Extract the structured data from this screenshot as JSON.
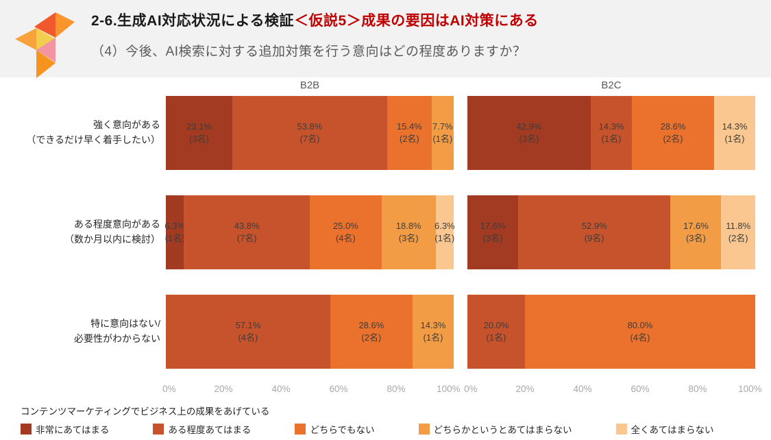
{
  "header": {
    "title_main": "2-6.生成AI対応状況による検証",
    "title_highlight": "＜仮説5＞成果の要因はAI対策にある",
    "subtitle": "（4）今後、AI検索に対する追加対策を行う意向はどの程度ありますか？"
  },
  "legend": {
    "caption": "コンテンツマーケティングでビジネス上の成果をあげている"
  },
  "chart_data": {
    "type": "bar",
    "orientation": "horizontal",
    "stacked": true,
    "title": "（4）今後、AI検索に対する追加対策を行う意向はどの程度ありますか？",
    "groups": [
      "B2B",
      "B2C"
    ],
    "categories": [
      {
        "lines": [
          "強く意向がある",
          "（できるだけ早く着手したい）"
        ]
      },
      {
        "lines": [
          "ある程度意向がある",
          "（数か月以内に検討）"
        ]
      },
      {
        "lines": [
          "特に意向はない/",
          "必要性がわからない"
        ]
      }
    ],
    "series_labels": [
      "非常にあてはまる",
      "ある程度あてはまる",
      "どちらでもない",
      "どちらかというとあてはまらない",
      "全くあてはまらない"
    ],
    "colors": [
      "#A23B21",
      "#C6532B",
      "#EB722C",
      "#F29D45",
      "#F9C78F"
    ],
    "axis": {
      "ticks": [
        "0%",
        "20%",
        "40%",
        "60%",
        "80%",
        "100%"
      ],
      "range": [
        0,
        100
      ],
      "gridlines": false
    },
    "legend_position": "bottom",
    "bars": {
      "B2B": [
        [
          {
            "series": 0,
            "pct": 23.1,
            "pct_label": "23.1%",
            "count": 3,
            "count_label": "(3名)"
          },
          {
            "series": 1,
            "pct": 53.8,
            "pct_label": "53.8%",
            "count": 7,
            "count_label": "(7名)"
          },
          {
            "series": 2,
            "pct": 15.4,
            "pct_label": "15.4%",
            "count": 2,
            "count_label": "(2名)"
          },
          {
            "series": 3,
            "pct": 7.7,
            "pct_label": "7.7%",
            "count": 1,
            "count_label": "(1名)"
          }
        ],
        [
          {
            "series": 0,
            "pct": 6.3,
            "pct_label": "6.3%",
            "count": 1,
            "count_label": "(1名)"
          },
          {
            "series": 1,
            "pct": 43.8,
            "pct_label": "43.8%",
            "count": 7,
            "count_label": "(7名)"
          },
          {
            "series": 2,
            "pct": 25.0,
            "pct_label": "25.0%",
            "count": 4,
            "count_label": "(4名)"
          },
          {
            "series": 3,
            "pct": 18.8,
            "pct_label": "18.8%",
            "count": 3,
            "count_label": "(3名)"
          },
          {
            "series": 4,
            "pct": 6.3,
            "pct_label": "6.3%",
            "count": 1,
            "count_label": "(1名)"
          }
        ],
        [
          {
            "series": 1,
            "pct": 57.1,
            "pct_label": "57.1%",
            "count": 4,
            "count_label": "(4名)"
          },
          {
            "series": 2,
            "pct": 28.6,
            "pct_label": "28.6%",
            "count": 2,
            "count_label": "(2名)"
          },
          {
            "series": 3,
            "pct": 14.3,
            "pct_label": "14.3%",
            "count": 1,
            "count_label": "(1名)"
          }
        ]
      ],
      "B2C": [
        [
          {
            "series": 0,
            "pct": 42.9,
            "pct_label": "42.9%",
            "count": 3,
            "count_label": "(3名)"
          },
          {
            "series": 1,
            "pct": 14.3,
            "pct_label": "14.3%",
            "count": 1,
            "count_label": "(1名)"
          },
          {
            "series": 2,
            "pct": 28.6,
            "pct_label": "28.6%",
            "count": 2,
            "count_label": "(2名)"
          },
          {
            "series": 4,
            "pct": 14.3,
            "pct_label": "14.3%",
            "count": 1,
            "count_label": "(1名)"
          }
        ],
        [
          {
            "series": 0,
            "pct": 17.6,
            "pct_label": "17.6%",
            "count": 3,
            "count_label": "(3名)"
          },
          {
            "series": 1,
            "pct": 52.9,
            "pct_label": "52.9%",
            "count": 9,
            "count_label": "(9名)"
          },
          {
            "series": 3,
            "pct": 17.6,
            "pct_label": "17.6%",
            "count": 3,
            "count_label": "(3名)"
          },
          {
            "series": 4,
            "pct": 11.8,
            "pct_label": "11.8%",
            "count": 2,
            "count_label": "(2名)"
          }
        ],
        [
          {
            "series": 1,
            "pct": 20.0,
            "pct_label": "20.0%",
            "count": 1,
            "count_label": "(1名)"
          },
          {
            "series": 2,
            "pct": 80.0,
            "pct_label": "80.0%",
            "count": 4,
            "count_label": "(4名)"
          }
        ]
      ]
    }
  }
}
